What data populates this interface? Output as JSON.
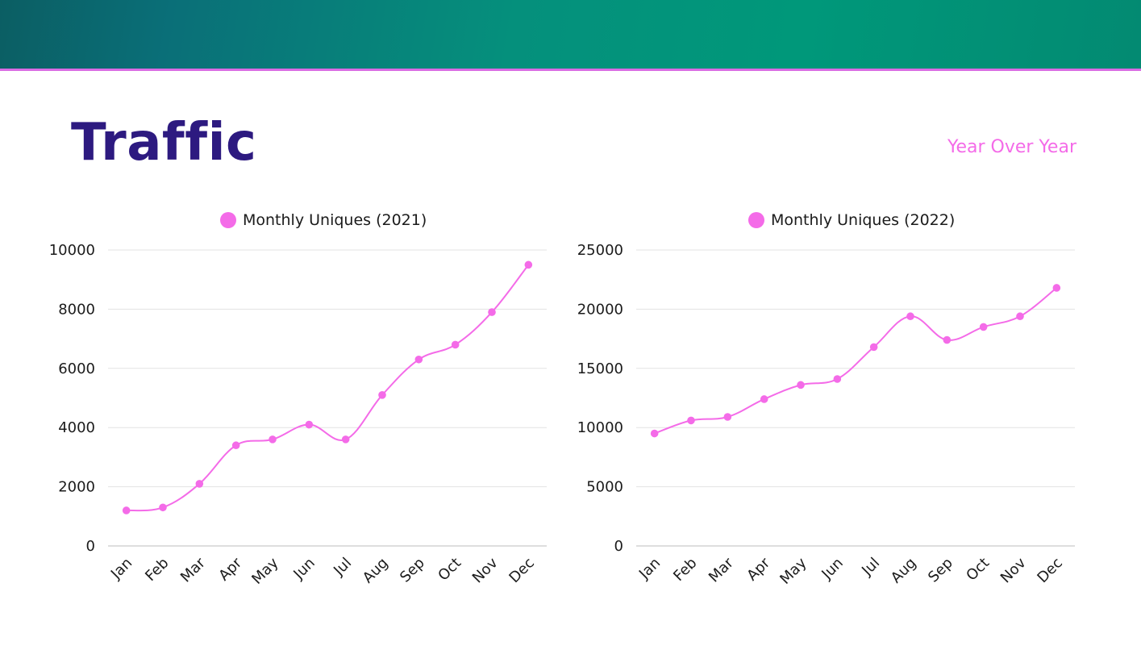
{
  "header": {
    "title": "Traffic",
    "subtitle": "Year Over Year"
  },
  "colors": {
    "accent": "#f46be8",
    "title": "#2d1a80",
    "banner_start": "#0b5e63",
    "banner_end": "#00987a",
    "rule": "#d96ce3",
    "grid": "#e3e3e3"
  },
  "chart_data": [
    {
      "type": "line",
      "legend_position": "top",
      "grid": true,
      "categories": [
        "Jan",
        "Feb",
        "Mar",
        "Apr",
        "May",
        "Jun",
        "Jul",
        "Aug",
        "Sep",
        "Oct",
        "Nov",
        "Dec"
      ],
      "series": [
        {
          "name": "Monthly Uniques (2021)",
          "values": [
            1200,
            1300,
            2100,
            3400,
            3600,
            4100,
            3600,
            5100,
            6300,
            6800,
            7900,
            9500
          ]
        }
      ],
      "ylim": [
        0,
        10000
      ],
      "yticks": [
        "0",
        "2000",
        "4000",
        "6000",
        "8000",
        "10000"
      ]
    },
    {
      "type": "line",
      "legend_position": "top",
      "grid": true,
      "categories": [
        "Jan",
        "Feb",
        "Mar",
        "Apr",
        "May",
        "Jun",
        "Jul",
        "Aug",
        "Sep",
        "Oct",
        "Nov",
        "Dec"
      ],
      "series": [
        {
          "name": "Monthly Uniques (2022)",
          "values": [
            9500,
            10600,
            10900,
            12400,
            13600,
            14100,
            16800,
            19400,
            17400,
            18500,
            19400,
            21800
          ]
        }
      ],
      "ylim": [
        0,
        25000
      ],
      "yticks": [
        "0",
        "5000",
        "10000",
        "15000",
        "20000",
        "25000"
      ]
    }
  ]
}
